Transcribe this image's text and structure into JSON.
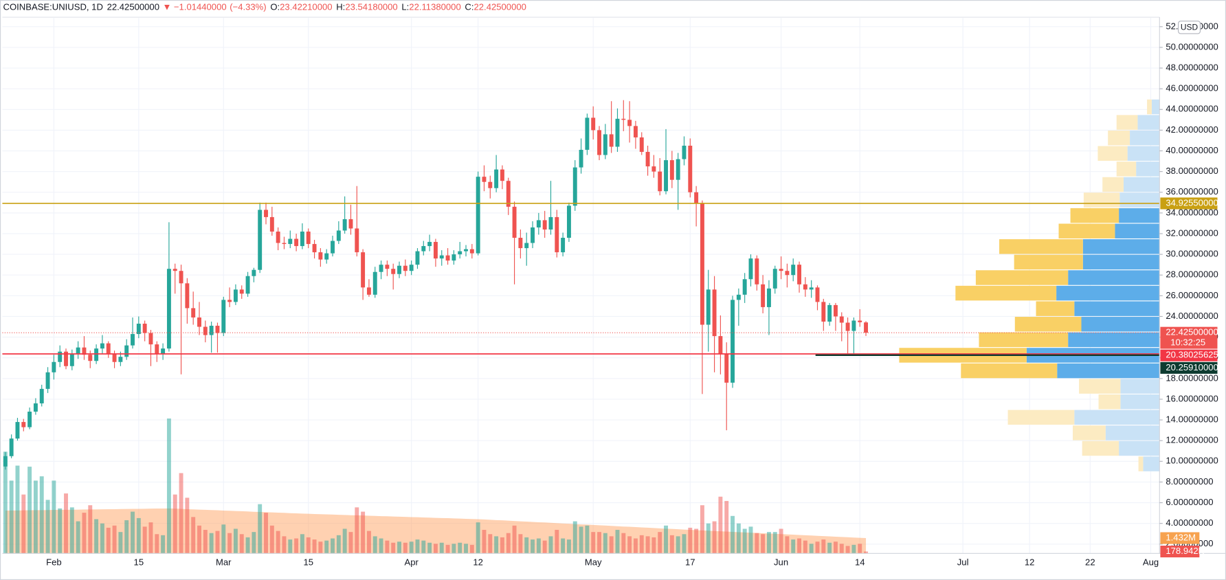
{
  "chart_data": {
    "type": "candlestick",
    "header": {
      "symbol": "COINBASE:UNIUSD, 1D",
      "last": "22.42500000",
      "arrow": "▼",
      "change": "−1.01440000",
      "change_pct": "(−4.33%)",
      "ohlc": [
        {
          "key": "O:",
          "value": "23.42210000"
        },
        {
          "key": "H:",
          "value": "23.54180000"
        },
        {
          "key": "L:",
          "value": "22.11380000"
        },
        {
          "key": "C:",
          "value": "22.42500000"
        }
      ]
    },
    "currency": "USD",
    "up_color": "#26a69a",
    "down_color": "#ef5350",
    "grid": true,
    "xlim": [
      -0.5,
      190.45
    ],
    "xticks": [
      {
        "value": 8,
        "label": "Feb"
      },
      {
        "value": 22,
        "label": "15"
      },
      {
        "value": 36,
        "label": "Mar"
      },
      {
        "value": 50,
        "label": "15"
      },
      {
        "value": 67,
        "label": "Apr"
      },
      {
        "value": 78,
        "label": "12"
      },
      {
        "value": 97,
        "label": "May"
      },
      {
        "value": 113,
        "label": "17"
      },
      {
        "value": 128,
        "label": "Jun"
      },
      {
        "value": 141,
        "label": "14"
      },
      {
        "value": 158,
        "label": "Jul"
      },
      {
        "value": 169,
        "label": "12"
      },
      {
        "value": 179,
        "label": "22"
      },
      {
        "value": 189,
        "label": "Aug"
      }
    ],
    "ylim": [
      1.1,
      52.84
    ],
    "yticks": [
      {
        "value": 2,
        "label": "2.00000000"
      },
      {
        "value": 4,
        "label": "4.00000000"
      },
      {
        "value": 6,
        "label": "6.00000000"
      },
      {
        "value": 8,
        "label": "8.00000000"
      },
      {
        "value": 10,
        "label": "10.00000000"
      },
      {
        "value": 12,
        "label": "12.00000000"
      },
      {
        "value": 14,
        "label": "14.00000000"
      },
      {
        "value": 16,
        "label": "16.00000000"
      },
      {
        "value": 18,
        "label": "18.00000000"
      },
      {
        "value": 20,
        "label": "20.00000000"
      },
      {
        "value": 22,
        "label": "22.00000000"
      },
      {
        "value": 24,
        "label": "24.00000000"
      },
      {
        "value": 26,
        "label": "26.00000000"
      },
      {
        "value": 28,
        "label": "28.00000000"
      },
      {
        "value": 30,
        "label": "30.00000000"
      },
      {
        "value": 32,
        "label": "32.00000000"
      },
      {
        "value": 34,
        "label": "34.00000000"
      },
      {
        "value": 36,
        "label": "36.00000000"
      },
      {
        "value": 38,
        "label": "38.00000000"
      },
      {
        "value": 40,
        "label": "40.00000000"
      },
      {
        "value": 42,
        "label": "42.00000000"
      },
      {
        "value": 44,
        "label": "44.00000000"
      },
      {
        "value": 46,
        "label": "46.00000000"
      },
      {
        "value": 48,
        "label": "48.00000000"
      },
      {
        "value": 50,
        "label": "50.00000000"
      },
      {
        "value": 52,
        "label": "52.00000000"
      }
    ],
    "vlim": [
      0,
      50
    ],
    "candles": [
      [
        9.5,
        10.9,
        9.2,
        10.5
      ],
      [
        10.5,
        12.6,
        10.3,
        12.2
      ],
      [
        12.2,
        14.2,
        12.0,
        13.8
      ],
      [
        13.8,
        14.1,
        12.9,
        13.3
      ],
      [
        13.3,
        15.2,
        13.1,
        14.8
      ],
      [
        14.8,
        16.1,
        14.5,
        15.6
      ],
      [
        15.6,
        17.4,
        15.3,
        17.0
      ],
      [
        17.0,
        19.1,
        16.6,
        18.6
      ],
      [
        18.6,
        20.3,
        17.9,
        19.6
      ],
      [
        19.6,
        21.2,
        19.1,
        20.6
      ],
      [
        20.6,
        20.9,
        18.9,
        19.2
      ],
      [
        19.2,
        20.8,
        18.8,
        20.4
      ],
      [
        20.4,
        21.6,
        19.9,
        21.0
      ],
      [
        21.0,
        22.1,
        19.8,
        20.3
      ],
      [
        20.3,
        20.7,
        19.0,
        19.7
      ],
      [
        19.7,
        21.3,
        19.4,
        20.9
      ],
      [
        20.9,
        22.2,
        20.4,
        21.4
      ],
      [
        21.4,
        21.6,
        20.0,
        20.4
      ],
      [
        20.4,
        20.7,
        19.0,
        19.6
      ],
      [
        19.6,
        20.6,
        19.2,
        20.1
      ],
      [
        20.1,
        21.8,
        19.8,
        21.2
      ],
      [
        21.2,
        23.9,
        20.9,
        22.3
      ],
      [
        22.3,
        24.0,
        21.9,
        23.3
      ],
      [
        23.3,
        23.6,
        21.6,
        22.4
      ],
      [
        22.4,
        22.7,
        19.2,
        21.3
      ],
      [
        21.3,
        21.6,
        19.6,
        20.4
      ],
      [
        20.4,
        21.4,
        19.8,
        20.9
      ],
      [
        20.9,
        33.1,
        20.6,
        28.6
      ],
      [
        28.6,
        29.1,
        26.2,
        28.4
      ],
      [
        28.4,
        29.0,
        18.4,
        27.2
      ],
      [
        27.2,
        27.7,
        23.3,
        24.8
      ],
      [
        24.8,
        26.4,
        23.2,
        23.9
      ],
      [
        23.9,
        25.4,
        22.2,
        23.0
      ],
      [
        23.0,
        23.6,
        21.5,
        22.2
      ],
      [
        22.2,
        23.5,
        20.5,
        23.1
      ],
      [
        23.1,
        23.4,
        20.5,
        22.4
      ],
      [
        22.4,
        25.9,
        22.1,
        25.6
      ],
      [
        25.6,
        26.8,
        24.9,
        25.4
      ],
      [
        25.4,
        27.1,
        25.1,
        26.6
      ],
      [
        26.6,
        27.0,
        25.7,
        26.2
      ],
      [
        26.2,
        28.3,
        25.9,
        27.9
      ],
      [
        27.9,
        28.7,
        27.3,
        28.5
      ],
      [
        28.5,
        35.0,
        28.2,
        34.3
      ],
      [
        34.3,
        35.0,
        32.9,
        33.6
      ],
      [
        33.6,
        34.6,
        31.8,
        32.2
      ],
      [
        32.2,
        32.6,
        30.4,
        31.1
      ],
      [
        31.1,
        31.7,
        30.5,
        31.0
      ],
      [
        31.0,
        32.3,
        30.6,
        31.5
      ],
      [
        31.5,
        32.0,
        30.3,
        30.8
      ],
      [
        30.8,
        33.0,
        30.5,
        32.2
      ],
      [
        32.2,
        32.5,
        30.6,
        31.0
      ],
      [
        31.0,
        31.4,
        29.6,
        30.2
      ],
      [
        30.2,
        30.6,
        28.8,
        29.5
      ],
      [
        29.5,
        30.5,
        29.1,
        30.1
      ],
      [
        30.1,
        31.8,
        29.8,
        31.3
      ],
      [
        31.3,
        33.2,
        31.0,
        32.3
      ],
      [
        32.3,
        35.6,
        32.0,
        33.4
      ],
      [
        33.4,
        34.8,
        31.9,
        32.5
      ],
      [
        32.5,
        36.6,
        29.8,
        30.2
      ],
      [
        30.2,
        30.5,
        25.6,
        26.8
      ],
      [
        26.8,
        27.6,
        25.9,
        26.1
      ],
      [
        26.1,
        28.8,
        25.8,
        28.3
      ],
      [
        28.3,
        29.4,
        27.6,
        29.0
      ],
      [
        29.0,
        29.4,
        27.9,
        28.6
      ],
      [
        28.6,
        29.1,
        26.6,
        28.1
      ],
      [
        28.1,
        29.3,
        27.7,
        28.9
      ],
      [
        28.9,
        29.5,
        27.9,
        28.4
      ],
      [
        28.4,
        29.4,
        28.0,
        29.0
      ],
      [
        29.0,
        30.6,
        28.6,
        30.3
      ],
      [
        30.3,
        31.3,
        29.9,
        30.8
      ],
      [
        30.8,
        31.9,
        30.3,
        31.2
      ],
      [
        31.2,
        31.5,
        28.8,
        29.6
      ],
      [
        29.6,
        30.4,
        28.9,
        29.9
      ],
      [
        29.9,
        30.6,
        29.0,
        29.4
      ],
      [
        29.4,
        30.4,
        29.0,
        30.0
      ],
      [
        30.0,
        31.2,
        29.6,
        30.3
      ],
      [
        30.3,
        30.9,
        29.8,
        30.5
      ],
      [
        30.5,
        31.0,
        29.6,
        30.1
      ],
      [
        30.1,
        38.0,
        29.9,
        37.5
      ],
      [
        37.5,
        38.6,
        36.1,
        37.0
      ],
      [
        37.0,
        37.6,
        35.4,
        36.4
      ],
      [
        36.4,
        39.6,
        36.0,
        38.2
      ],
      [
        38.2,
        38.6,
        36.3,
        37.1
      ],
      [
        37.1,
        37.4,
        33.8,
        34.6
      ],
      [
        34.6,
        35.1,
        27.1,
        31.6
      ],
      [
        31.6,
        32.4,
        29.6,
        30.6
      ],
      [
        30.6,
        32.1,
        28.9,
        31.1
      ],
      [
        31.1,
        33.2,
        30.6,
        32.6
      ],
      [
        32.6,
        34.0,
        31.9,
        33.3
      ],
      [
        33.3,
        34.2,
        31.6,
        32.4
      ],
      [
        32.4,
        37.1,
        31.9,
        33.6
      ],
      [
        33.6,
        34.3,
        29.7,
        30.2
      ],
      [
        30.2,
        32.1,
        29.8,
        31.6
      ],
      [
        31.6,
        35.0,
        31.2,
        34.7
      ],
      [
        34.7,
        39.1,
        34.2,
        38.4
      ],
      [
        38.4,
        41.2,
        37.8,
        40.1
      ],
      [
        40.1,
        43.6,
        39.6,
        43.2
      ],
      [
        43.2,
        44.3,
        41.1,
        42.0
      ],
      [
        42.0,
        42.4,
        39.1,
        39.6
      ],
      [
        39.6,
        42.6,
        39.2,
        41.6
      ],
      [
        41.6,
        44.8,
        39.8,
        40.4
      ],
      [
        40.4,
        44.1,
        39.9,
        43.1
      ],
      [
        43.1,
        44.9,
        41.9,
        43.0
      ],
      [
        43.0,
        44.8,
        40.8,
        42.4
      ],
      [
        42.4,
        42.9,
        40.2,
        41.3
      ],
      [
        41.3,
        41.8,
        39.6,
        39.9
      ],
      [
        39.9,
        40.5,
        37.6,
        38.5
      ],
      [
        38.5,
        39.6,
        37.4,
        38.0
      ],
      [
        38.0,
        39.3,
        35.7,
        36.1
      ],
      [
        36.1,
        42.1,
        35.8,
        39.1
      ],
      [
        39.1,
        40.0,
        36.4,
        37.2
      ],
      [
        37.2,
        39.8,
        34.3,
        39.2
      ],
      [
        39.2,
        41.4,
        38.6,
        40.5
      ],
      [
        40.5,
        41.2,
        35.5,
        36.0
      ],
      [
        36.0,
        36.6,
        32.7,
        34.9
      ],
      [
        34.9,
        35.2,
        16.5,
        23.2
      ],
      [
        23.2,
        28.5,
        20.6,
        26.6
      ],
      [
        26.6,
        27.9,
        18.6,
        22.1
      ],
      [
        22.1,
        24.1,
        18.4,
        20.4
      ],
      [
        20.4,
        21.5,
        13.0,
        17.6
      ],
      [
        17.6,
        26.0,
        17.1,
        25.6
      ],
      [
        25.6,
        26.7,
        23.1,
        26.1
      ],
      [
        26.1,
        28.2,
        25.3,
        27.6
      ],
      [
        27.6,
        30.0,
        26.9,
        29.6
      ],
      [
        29.6,
        29.9,
        26.5,
        27.1
      ],
      [
        27.1,
        28.0,
        24.3,
        24.9
      ],
      [
        24.9,
        27.5,
        22.2,
        26.7
      ],
      [
        26.7,
        28.9,
        26.2,
        28.6
      ],
      [
        28.6,
        29.8,
        27.6,
        28.4
      ],
      [
        28.4,
        29.1,
        26.8,
        28.0
      ],
      [
        28.0,
        29.6,
        27.4,
        29.0
      ],
      [
        29.0,
        29.3,
        26.3,
        27.1
      ],
      [
        27.1,
        27.8,
        25.9,
        26.6
      ],
      [
        26.6,
        27.5,
        25.8,
        26.8
      ],
      [
        26.8,
        27.0,
        24.6,
        25.4
      ],
      [
        25.4,
        25.7,
        22.6,
        23.5
      ],
      [
        23.5,
        25.3,
        23.1,
        25.1
      ],
      [
        25.1,
        25.3,
        22.6,
        24.0
      ],
      [
        24.0,
        24.4,
        21.6,
        23.4
      ],
      [
        23.4,
        23.9,
        20.4,
        22.6
      ],
      [
        22.6,
        23.9,
        20.3,
        23.6
      ],
      [
        23.6,
        24.7,
        23.0,
        23.4394
      ],
      [
        23.4221,
        23.5418,
        22.1138,
        22.425
      ]
    ],
    "volumes": [
      9.5,
      6.8,
      8.2,
      5.5,
      8.1,
      6.8,
      7.2,
      5.0,
      6.8,
      4.2,
      5.6,
      4.3,
      3.0,
      3.8,
      4.5,
      3.2,
      2.8,
      2.4,
      2.6,
      2.0,
      3.1,
      3.9,
      3.3,
      2.5,
      2.9,
      1.8,
      1.7,
      12.6,
      5.5,
      7.5,
      5.2,
      3.4,
      2.6,
      2.2,
      1.9,
      2.1,
      2.7,
      1.9,
      2.3,
      1.8,
      1.5,
      2.0,
      4.6,
      3.8,
      2.6,
      2.1,
      1.6,
      1.3,
      1.4,
      1.8,
      1.5,
      1.3,
      1.1,
      1.2,
      1.4,
      1.7,
      2.3,
      2.0,
      4.3,
      3.9,
      2.1,
      1.6,
      1.4,
      1.2,
      1.0,
      1.1,
      1.0,
      1.1,
      1.3,
      1.2,
      1.0,
      0.9,
      1.0,
      0.8,
      0.9,
      1.0,
      0.9,
      0.8,
      2.9,
      2.2,
      1.8,
      1.6,
      1.5,
      1.9,
      2.6,
      1.8,
      1.5,
      1.3,
      1.4,
      1.2,
      1.6,
      2.2,
      1.4,
      1.3,
      3.0,
      2.5,
      2.6,
      2.0,
      2.0,
      1.9,
      1.6,
      2.2,
      1.9,
      1.6,
      1.4,
      1.7,
      1.6,
      1.5,
      2.0,
      2.6,
      1.7,
      1.6,
      1.8,
      2.4,
      2.3,
      4.5,
      2.8,
      3.0,
      5.3,
      4.9,
      3.5,
      2.8,
      2.3,
      2.5,
      1.9,
      1.8,
      2.0,
      2.0,
      2.3,
      1.6,
      1.3,
      1.4,
      1.2,
      0.9,
      1.1,
      1.3,
      1.0,
      1.1,
      0.9,
      0.7,
      0.8,
      0.9,
      0.178942
    ],
    "volume_ma": [
      4.0,
      4.01,
      4.01,
      4.02,
      4.03,
      4.04,
      4.04,
      4.05,
      4.06,
      4.07,
      4.07,
      4.08,
      4.09,
      4.1,
      4.1,
      4.11,
      4.12,
      4.13,
      4.13,
      4.14,
      4.15,
      4.16,
      4.16,
      4.17,
      4.18,
      4.19,
      4.19,
      4.2,
      4.18,
      4.16,
      4.13,
      4.11,
      4.09,
      4.07,
      4.05,
      4.03,
      4.0,
      3.98,
      3.96,
      3.94,
      3.92,
      3.89,
      3.87,
      3.85,
      3.83,
      3.81,
      3.79,
      3.76,
      3.74,
      3.72,
      3.7,
      3.68,
      3.66,
      3.65,
      3.63,
      3.61,
      3.59,
      3.57,
      3.56,
      3.54,
      3.52,
      3.5,
      3.48,
      3.47,
      3.45,
      3.43,
      3.41,
      3.39,
      3.38,
      3.36,
      3.34,
      3.32,
      3.3,
      3.29,
      3.27,
      3.25,
      3.23,
      3.21,
      3.2,
      3.17,
      3.14,
      3.11,
      3.09,
      3.06,
      3.03,
      3.0,
      2.97,
      2.94,
      2.91,
      2.89,
      2.86,
      2.83,
      2.8,
      2.77,
      2.74,
      2.71,
      2.69,
      2.66,
      2.63,
      2.6,
      2.57,
      2.54,
      2.51,
      2.49,
      2.46,
      2.43,
      2.4,
      2.37,
      2.34,
      2.31,
      2.29,
      2.26,
      2.23,
      2.2,
      2.17,
      2.15,
      2.12,
      2.09,
      2.07,
      2.04,
      2.01,
      1.99,
      1.96,
      1.93,
      1.91,
      1.88,
      1.86,
      1.83,
      1.8,
      1.78,
      1.75,
      1.72,
      1.7,
      1.67,
      1.64,
      1.62,
      1.59,
      1.56,
      1.54,
      1.51,
      1.48,
      1.46,
      1.432
    ],
    "volume_ma_color": "#ff9a52",
    "profile": {
      "bins": [
        9,
        10.5,
        12,
        13.5,
        15,
        16.5,
        18,
        19.5,
        21,
        22.5,
        24,
        25.5,
        27,
        28.5,
        30,
        31.5,
        33,
        34.5,
        36,
        37.5,
        39,
        40.5,
        42,
        43.5,
        45
      ],
      "up": [
        21,
        52,
        69,
        109,
        50,
        50,
        131,
        170,
        117,
        100,
        109,
        132,
        117,
        98,
        98,
        57,
        52,
        51,
        46,
        30,
        41,
        38,
        28,
        10
      ],
      "down": [
        6,
        47,
        42,
        85,
        28,
        53,
        123,
        163,
        114,
        85,
        49,
        129,
        118,
        88,
        107,
        72,
        62,
        46,
        27,
        25,
        38,
        28,
        27,
        6
      ],
      "value_area": [
        18,
        34.5
      ],
      "up_color": "#5dade9",
      "down_color": "#f9d065",
      "up_color_outside": "#c9e2f6",
      "down_color_outside": "#fcebc2"
    },
    "markers": [
      {
        "value": 34.9255,
        "label": "34.92550000",
        "color": "#c9a012",
        "line": "solid"
      },
      {
        "value": 22.425,
        "label": "22.42500000",
        "countdown": "10:32:25",
        "color": "#ef5350",
        "line": "dotted"
      },
      {
        "value": 20.38025625,
        "label": "20.38025625",
        "color": "#f23645",
        "line": "solid"
      },
      {
        "value": 20.2591,
        "label": "20.25910000",
        "color": "#0d3b30",
        "line": "ray"
      },
      {
        "value": 1.432,
        "label": "1.432M",
        "color": "#f7a24f",
        "axis": "volume"
      },
      {
        "value": 0.178942,
        "label": "178.942K",
        "color": "#ef5350",
        "axis": "volume"
      }
    ]
  }
}
